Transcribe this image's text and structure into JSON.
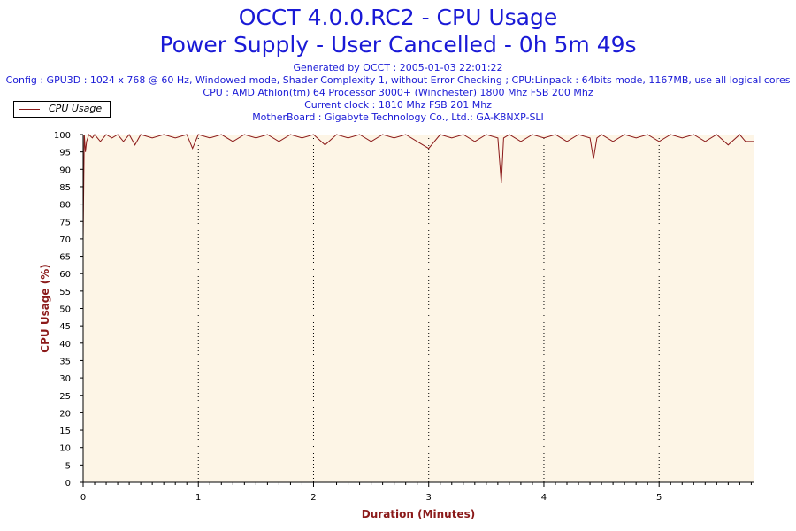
{
  "header": {
    "title_line1": "OCCT 4.0.0.RC2 - CPU Usage",
    "title_line2": "Power Supply - User Cancelled - 0h 5m 49s",
    "generated": "Generated by OCCT : 2005-01-03 22:01:22",
    "config": "Config : GPU3D : 1024 x 768 @ 60 Hz, Windowed mode, Shader Complexity 1, without Error Checking ; CPU:Linpack : 64bits mode, 1167MB, use all logical cores",
    "cpu": "CPU : AMD Athlon(tm) 64 Processor 3000+ (Winchester) 1800 Mhz FSB 200 Mhz",
    "clock": "Current clock : 1810 Mhz FSB 201 Mhz",
    "motherboard": "MotherBoard : Gigabyte Technology Co., Ltd.: GA-K8NXP-SLI"
  },
  "legend": {
    "label": "CPU Usage"
  },
  "colors": {
    "line": "#8b1a1a",
    "plot_bg": "#fdf5e6",
    "axis_label": "#8b1a1a",
    "title": "#1a1ad6"
  },
  "chart_data": {
    "type": "line",
    "xlabel": "Duration (Minutes)",
    "ylabel": "CPU Usage (%)",
    "xlim": [
      0,
      5.82
    ],
    "ylim": [
      0,
      100
    ],
    "xticks": [
      0,
      1,
      2,
      3,
      4,
      5
    ],
    "yticks": [
      0,
      5,
      10,
      15,
      20,
      25,
      30,
      35,
      40,
      45,
      50,
      55,
      60,
      65,
      70,
      75,
      80,
      85,
      90,
      95,
      100
    ],
    "grid": "vertical-dotted",
    "legend_position": "top-left",
    "series": [
      {
        "name": "CPU Usage",
        "x": [
          0,
          0.01,
          0.02,
          0.03,
          0.05,
          0.08,
          0.1,
          0.15,
          0.2,
          0.25,
          0.3,
          0.35,
          0.4,
          0.45,
          0.5,
          0.6,
          0.7,
          0.8,
          0.9,
          0.95,
          1.0,
          1.1,
          1.2,
          1.3,
          1.4,
          1.5,
          1.6,
          1.7,
          1.8,
          1.9,
          2.0,
          2.1,
          2.2,
          2.3,
          2.4,
          2.5,
          2.6,
          2.7,
          2.8,
          2.9,
          3.0,
          3.1,
          3.2,
          3.3,
          3.4,
          3.5,
          3.6,
          3.63,
          3.65,
          3.7,
          3.8,
          3.9,
          4.0,
          4.1,
          4.2,
          4.3,
          4.4,
          4.43,
          4.46,
          4.5,
          4.6,
          4.7,
          4.8,
          4.9,
          5.0,
          5.1,
          5.2,
          5.3,
          5.4,
          5.5,
          5.6,
          5.7,
          5.75,
          5.82
        ],
        "values": [
          70,
          100,
          95,
          98,
          100,
          99,
          100,
          98,
          100,
          99,
          100,
          98,
          100,
          97,
          100,
          99,
          100,
          99,
          100,
          96,
          100,
          99,
          100,
          98,
          100,
          99,
          100,
          98,
          100,
          99,
          100,
          97,
          100,
          99,
          100,
          98,
          100,
          99,
          100,
          98,
          96,
          100,
          99,
          100,
          98,
          100,
          99,
          86,
          99,
          100,
          98,
          100,
          99,
          100,
          98,
          100,
          99,
          93,
          99,
          100,
          98,
          100,
          99,
          100,
          98,
          100,
          99,
          100,
          98,
          100,
          97,
          100,
          98,
          98
        ]
      }
    ]
  }
}
